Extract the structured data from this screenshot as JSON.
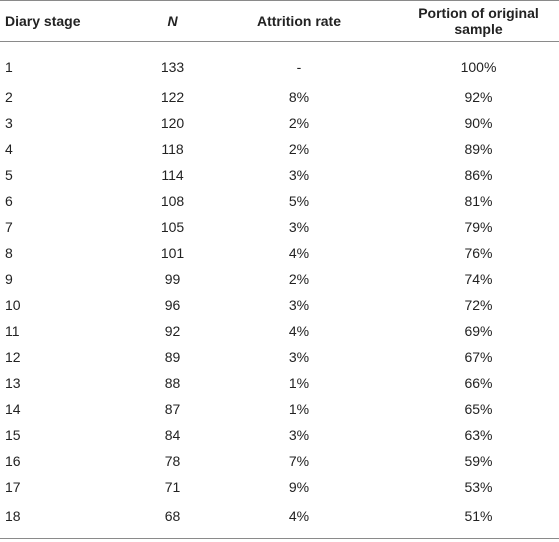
{
  "table": {
    "headers": [
      "Diary stage",
      "N",
      "Attrition rate",
      "Portion of original sample"
    ],
    "rows": [
      [
        "1",
        "133",
        "-",
        "100%"
      ],
      [
        "2",
        "122",
        "8%",
        "92%"
      ],
      [
        "3",
        "120",
        "2%",
        "90%"
      ],
      [
        "4",
        "118",
        "2%",
        "89%"
      ],
      [
        "5",
        "114",
        "3%",
        "86%"
      ],
      [
        "6",
        "108",
        "5%",
        "81%"
      ],
      [
        "7",
        "105",
        "3%",
        "79%"
      ],
      [
        "8",
        "101",
        "4%",
        "76%"
      ],
      [
        "9",
        "99",
        "2%",
        "74%"
      ],
      [
        "10",
        "96",
        "3%",
        "72%"
      ],
      [
        "11",
        "92",
        "4%",
        "69%"
      ],
      [
        "12",
        "89",
        "3%",
        "67%"
      ],
      [
        "13",
        "88",
        "1%",
        "66%"
      ],
      [
        "14",
        "87",
        "1%",
        "65%"
      ],
      [
        "15",
        "84",
        "3%",
        "63%"
      ],
      [
        "16",
        "78",
        "7%",
        "59%"
      ],
      [
        "17",
        "71",
        "9%",
        "53%"
      ],
      [
        "18",
        "68",
        "4%",
        "51%"
      ]
    ]
  }
}
